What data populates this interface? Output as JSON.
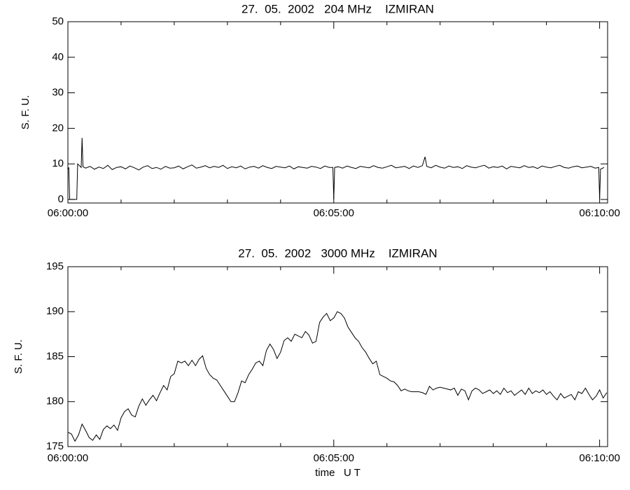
{
  "chart_data": [
    {
      "type": "line",
      "title": "27.  05.  2002   204 MHz    IZMIRAN",
      "ylabel": "S. F. U.",
      "color": "#000000",
      "xlim": [
        0,
        609
      ],
      "ylim": [
        -1,
        50
      ],
      "xticks": [
        {
          "value": 0,
          "label": "06:00:00"
        },
        {
          "value": 300,
          "label": "06:05:00"
        },
        {
          "value": 600,
          "label": "06:10:00"
        }
      ],
      "xminorticks": [
        60,
        120,
        180,
        240,
        360,
        420,
        480,
        540
      ],
      "yticks": [
        0,
        10,
        20,
        30,
        40,
        50
      ],
      "x": [
        0,
        1,
        2,
        10,
        11,
        15,
        16,
        17,
        20,
        25,
        30,
        35,
        40,
        45,
        50,
        55,
        60,
        65,
        70,
        75,
        80,
        85,
        90,
        95,
        100,
        105,
        110,
        115,
        120,
        125,
        130,
        135,
        140,
        145,
        150,
        155,
        160,
        165,
        170,
        175,
        180,
        185,
        190,
        195,
        200,
        205,
        210,
        215,
        220,
        225,
        230,
        235,
        240,
        245,
        250,
        255,
        260,
        265,
        270,
        275,
        280,
        285,
        290,
        295,
        299,
        300,
        301,
        305,
        310,
        315,
        320,
        325,
        330,
        335,
        340,
        345,
        350,
        355,
        360,
        365,
        370,
        375,
        380,
        385,
        390,
        395,
        400,
        403,
        405,
        410,
        415,
        420,
        425,
        430,
        435,
        440,
        445,
        450,
        455,
        460,
        465,
        470,
        475,
        480,
        485,
        490,
        495,
        500,
        505,
        510,
        515,
        520,
        525,
        530,
        535,
        540,
        545,
        550,
        555,
        560,
        565,
        570,
        575,
        580,
        585,
        590,
        595,
        599,
        600,
        601,
        605
      ],
      "values": [
        8.5,
        9,
        0,
        0,
        10,
        9,
        17.3,
        9.2,
        8.8,
        9.3,
        8.5,
        9.1,
        8.7,
        9.6,
        8.4,
        9.0,
        9.2,
        8.6,
        9.4,
        8.9,
        8.3,
        9.1,
        9.5,
        8.7,
        9.0,
        8.5,
        9.3,
        8.8,
        8.9,
        9.4,
        8.6,
        9.2,
        9.7,
        8.8,
        9.1,
        9.5,
        8.9,
        9.3,
        9.0,
        9.6,
        8.7,
        9.2,
        8.9,
        9.4,
        8.6,
        9.1,
        9.3,
        8.8,
        9.5,
        9.0,
        8.7,
        9.3,
        9.1,
        8.9,
        9.4,
        8.6,
        9.2,
        9.0,
        8.8,
        9.3,
        9.1,
        8.7,
        9.4,
        9.0,
        9,
        0,
        9,
        9.2,
        8.8,
        9.4,
        9.0,
        8.7,
        9.3,
        9.1,
        8.9,
        9.5,
        9.0,
        8.8,
        9.2,
        9.6,
        8.9,
        9.1,
        9.3,
        8.7,
        9.4,
        9.0,
        9.5,
        12,
        9.3,
        8.9,
        9.6,
        9.1,
        8.8,
        9.4,
        9.0,
        9.2,
        8.7,
        9.5,
        9.1,
        8.9,
        9.3,
        9.6,
        8.8,
        9.2,
        9.0,
        9.4,
        8.6,
        9.3,
        9.1,
        8.9,
        9.5,
        9.0,
        9.2,
        8.7,
        9.4,
        9.1,
        8.9,
        9.3,
        9.6,
        9.0,
        8.8,
        9.2,
        9.4,
        8.9,
        9.1,
        9.3,
        8.8,
        9,
        0,
        8.5,
        9
      ]
    },
    {
      "type": "line",
      "title": "27.  05.  2002   3000 MHz    IZMIRAN",
      "ylabel": "S. F. U.",
      "xlabel": "time   U T",
      "color": "#000000",
      "xlim": [
        0,
        609
      ],
      "ylim": [
        175,
        195
      ],
      "xticks": [
        {
          "value": 0,
          "label": "06:00:00"
        },
        {
          "value": 300,
          "label": "06:05:00"
        },
        {
          "value": 600,
          "label": "06:10:00"
        }
      ],
      "xminorticks": [
        60,
        120,
        180,
        240,
        360,
        420,
        480,
        540
      ],
      "yticks": [
        175,
        180,
        185,
        190,
        195
      ],
      "x": [
        0,
        4,
        8,
        12,
        16,
        20,
        24,
        28,
        32,
        36,
        40,
        44,
        48,
        52,
        56,
        60,
        64,
        68,
        72,
        76,
        80,
        84,
        88,
        92,
        96,
        100,
        104,
        108,
        112,
        116,
        120,
        124,
        128,
        132,
        136,
        140,
        144,
        148,
        152,
        156,
        160,
        164,
        168,
        172,
        176,
        180,
        184,
        188,
        192,
        196,
        200,
        204,
        208,
        212,
        216,
        220,
        224,
        228,
        232,
        236,
        240,
        244,
        248,
        252,
        256,
        260,
        264,
        268,
        272,
        276,
        280,
        284,
        288,
        292,
        296,
        300,
        304,
        308,
        312,
        316,
        320,
        324,
        328,
        332,
        336,
        340,
        344,
        348,
        352,
        356,
        360,
        364,
        368,
        372,
        376,
        380,
        384,
        388,
        392,
        396,
        400,
        404,
        408,
        412,
        416,
        420,
        424,
        428,
        432,
        436,
        440,
        444,
        448,
        452,
        456,
        460,
        464,
        468,
        472,
        476,
        480,
        484,
        488,
        492,
        496,
        500,
        504,
        508,
        512,
        516,
        520,
        524,
        528,
        532,
        536,
        540,
        544,
        548,
        552,
        556,
        560,
        564,
        568,
        572,
        576,
        580,
        584,
        588,
        592,
        596,
        600,
        604,
        608
      ],
      "values": [
        176.6,
        176.4,
        175.6,
        176.3,
        177.5,
        176.8,
        176.0,
        175.7,
        176.3,
        175.8,
        176.9,
        177.3,
        177.0,
        177.4,
        176.8,
        178.2,
        178.9,
        179.2,
        178.5,
        178.3,
        179.5,
        180.3,
        179.6,
        180.2,
        180.7,
        180.1,
        181.0,
        181.8,
        181.3,
        182.8,
        183.1,
        184.5,
        184.3,
        184.5,
        184.0,
        184.6,
        184.0,
        184.7,
        185.1,
        183.7,
        183.0,
        182.6,
        182.4,
        181.8,
        181.2,
        180.6,
        180.0,
        180.0,
        181.0,
        182.3,
        182.1,
        183.0,
        183.6,
        184.3,
        184.5,
        184.0,
        185.7,
        186.4,
        185.8,
        184.8,
        185.5,
        186.8,
        187.1,
        186.7,
        187.5,
        187.3,
        187.1,
        187.8,
        187.4,
        186.5,
        186.7,
        188.8,
        189.4,
        189.8,
        189.0,
        189.3,
        190.0,
        189.8,
        189.3,
        188.3,
        187.7,
        187.1,
        186.7,
        186.0,
        185.5,
        184.8,
        184.2,
        184.5,
        183.0,
        182.8,
        182.6,
        182.3,
        182.2,
        181.8,
        181.2,
        181.4,
        181.2,
        181.1,
        181.1,
        181.1,
        181.0,
        180.8,
        181.7,
        181.3,
        181.5,
        181.6,
        181.5,
        181.4,
        181.3,
        181.5,
        180.7,
        181.4,
        181.2,
        180.2,
        181.2,
        181.5,
        181.3,
        180.9,
        181.1,
        181.3,
        180.9,
        181.2,
        180.8,
        181.5,
        181.0,
        181.2,
        180.7,
        181.0,
        181.3,
        180.8,
        181.5,
        180.9,
        181.2,
        181.0,
        181.3,
        180.8,
        181.1,
        180.6,
        180.2,
        180.9,
        180.4,
        180.6,
        180.8,
        180.2,
        181.1,
        180.9,
        181.5,
        180.8,
        180.2,
        180.6,
        181.3,
        180.4,
        181.0
      ]
    }
  ]
}
